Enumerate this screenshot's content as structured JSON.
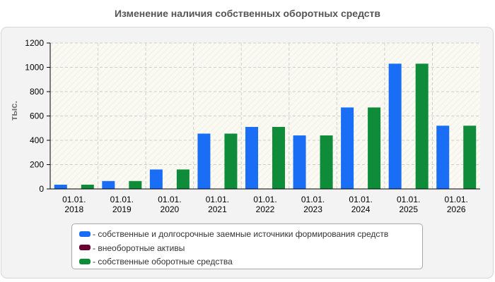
{
  "chart_data": {
    "type": "bar",
    "title": "Изменение наличия собственных оборотных средств",
    "ylabel": "тыс.",
    "xlabel": "",
    "ylim": [
      0,
      1200
    ],
    "yticks": [
      0,
      200,
      400,
      600,
      800,
      1000,
      1200
    ],
    "grid": true,
    "legend_position": "bottom",
    "categories": [
      [
        "01.01.",
        "2018"
      ],
      [
        "01.01.",
        "2019"
      ],
      [
        "01.01.",
        "2020"
      ],
      [
        "01.01.",
        "2021"
      ],
      [
        "01.01.",
        "2022"
      ],
      [
        "01.01.",
        "2023"
      ],
      [
        "01.01.",
        "2024"
      ],
      [
        "01.01.",
        "2025"
      ],
      [
        "01.01.",
        "2026"
      ]
    ],
    "series": [
      {
        "name": "собственные и долгосрочные заемные источники формирования средств",
        "color": "#1a6ef5",
        "values": [
          35,
          65,
          160,
          455,
          510,
          440,
          670,
          1030,
          520
        ]
      },
      {
        "name": "внеоборотные активы",
        "color": "#6a0032",
        "values": [
          3,
          3,
          3,
          3,
          3,
          3,
          3,
          3,
          3
        ]
      },
      {
        "name": "собственные оборотные средства",
        "color": "#0f8c3a",
        "values": [
          35,
          65,
          160,
          455,
          510,
          440,
          670,
          1030,
          520
        ]
      }
    ]
  }
}
